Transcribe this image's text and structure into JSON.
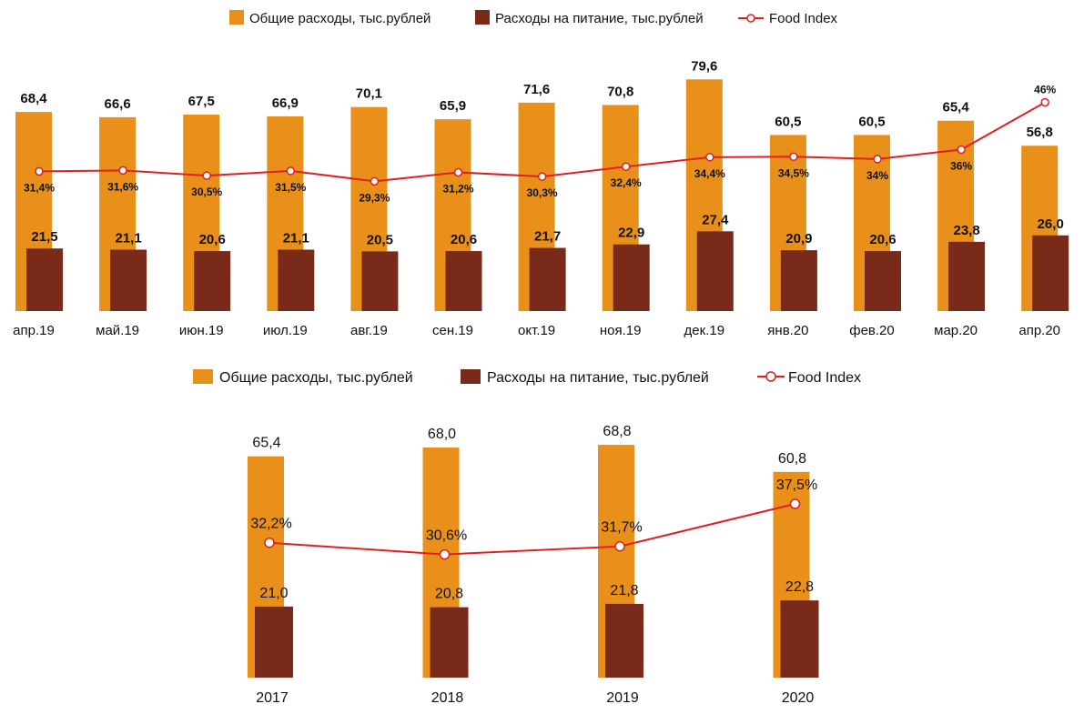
{
  "legend": {
    "total_label": "Общие расходы, тыс.рублей",
    "food_label": "Расходы на питание, тыс.рублей",
    "index_label": "Food Index"
  },
  "colors": {
    "total": "#E8901A",
    "food": "#7A2A18",
    "index": "#E02020"
  },
  "chart_data": [
    {
      "type": "bar",
      "categories": [
        "апр.19",
        "май.19",
        "июн.19",
        "июл.19",
        "авг.19",
        "сен.19",
        "окт.19",
        "ноя.19",
        "дек.19",
        "янв.20",
        "фев.20",
        "мар.20",
        "апр.20"
      ],
      "series": [
        {
          "name": "Общие расходы, тыс.рублей",
          "values": [
            68.4,
            66.6,
            67.5,
            66.9,
            70.1,
            65.9,
            71.6,
            70.8,
            79.6,
            60.5,
            60.5,
            65.4,
            56.8
          ],
          "labels": [
            "68,4",
            "66,6",
            "67,5",
            "66,9",
            "70,1",
            "65,9",
            "71,6",
            "70,8",
            "79,6",
            "60,5",
            "60,5",
            "65,4",
            "56,8"
          ]
        },
        {
          "name": "Расходы на питание, тыс.рублей",
          "values": [
            21.5,
            21.1,
            20.6,
            21.1,
            20.5,
            20.6,
            21.7,
            22.9,
            27.4,
            20.9,
            20.6,
            23.8,
            26.0
          ],
          "labels": [
            "21,5",
            "21,1",
            "20,6",
            "21,1",
            "20,5",
            "20,6",
            "21,7",
            "22,9",
            "27,4",
            "20,9",
            "20,6",
            "23,8",
            "26,0"
          ]
        },
        {
          "name": "Food Index",
          "type": "line",
          "values": [
            31.4,
            31.6,
            30.5,
            31.5,
            29.3,
            31.2,
            30.3,
            32.4,
            34.4,
            34.5,
            34.0,
            36.0,
            46.0
          ],
          "labels": [
            "31,4%",
            "31,6%",
            "30,5%",
            "31,5%",
            "29,3%",
            "31,2%",
            "30,3%",
            "32,4%",
            "34,4%",
            "34,5%",
            "34%",
            "36%",
            "46%"
          ]
        }
      ]
    },
    {
      "type": "bar",
      "categories": [
        "2017",
        "2018",
        "2019",
        "2020"
      ],
      "series": [
        {
          "name": "Общие расходы, тыс.рублей",
          "values": [
            65.4,
            68.0,
            68.8,
            60.8
          ],
          "labels": [
            "65,4",
            "68,0",
            "68,8",
            "60,8"
          ]
        },
        {
          "name": "Расходы на питание, тыс.рублей",
          "values": [
            21.0,
            20.8,
            21.8,
            22.8
          ],
          "labels": [
            "21,0",
            "20,8",
            "21,8",
            "22,8"
          ]
        },
        {
          "name": "Food Index",
          "type": "line",
          "values": [
            32.2,
            30.6,
            31.7,
            37.5
          ],
          "labels": [
            "32,2%",
            "30,6%",
            "31,7%",
            "37,5%"
          ]
        }
      ]
    }
  ]
}
